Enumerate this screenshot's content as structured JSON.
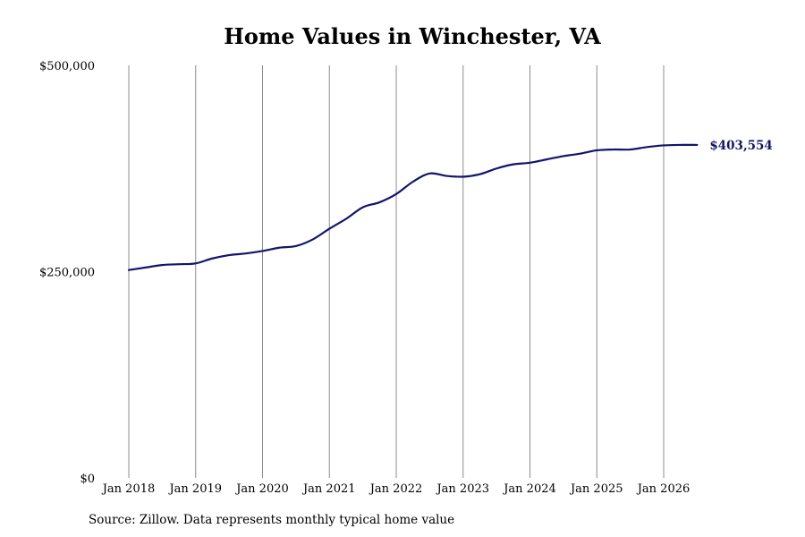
{
  "chart_data": {
    "type": "line",
    "title": "Home Values in Winchester, VA",
    "source": "Source: Zillow. Data represents monthly typical home value",
    "x_ticks": [
      "Jan 2018",
      "Jan 2019",
      "Jan 2020",
      "Jan 2021",
      "Jan 2022",
      "Jan 2023",
      "Jan 2024",
      "Jan 2025",
      "Jan 2026"
    ],
    "y_ticks": [
      "$0",
      "$250,000",
      "$500,000"
    ],
    "ylim": [
      0,
      500000
    ],
    "xlim": [
      "2017-11",
      "2026-11"
    ],
    "grid": "vertical lines at x tick positions",
    "line_color": "#14146b",
    "end_label": "$403,554",
    "series": [
      {
        "x": [
          "2018-01",
          "2018-04",
          "2018-07",
          "2018-10",
          "2019-01",
          "2019-04",
          "2019-07",
          "2019-10",
          "2020-01",
          "2020-04",
          "2020-07",
          "2020-10",
          "2021-01",
          "2021-04",
          "2021-07",
          "2021-10",
          "2022-01",
          "2022-04",
          "2022-07",
          "2022-10",
          "2023-01",
          "2023-04",
          "2023-07",
          "2023-10",
          "2024-01",
          "2024-04",
          "2024-07",
          "2024-10",
          "2025-01",
          "2025-04",
          "2025-07",
          "2025-10",
          "2026-01",
          "2026-04",
          "2026-07"
        ],
        "values": [
          252000,
          255000,
          258000,
          259000,
          260000,
          266000,
          270000,
          272000,
          275000,
          279000,
          281000,
          289000,
          302000,
          314000,
          328000,
          334000,
          344000,
          359000,
          369000,
          366000,
          365000,
          368000,
          375000,
          380000,
          382000,
          386000,
          390000,
          393000,
          397000,
          398000,
          398000,
          401000,
          403000,
          403554,
          403554
        ]
      }
    ]
  }
}
